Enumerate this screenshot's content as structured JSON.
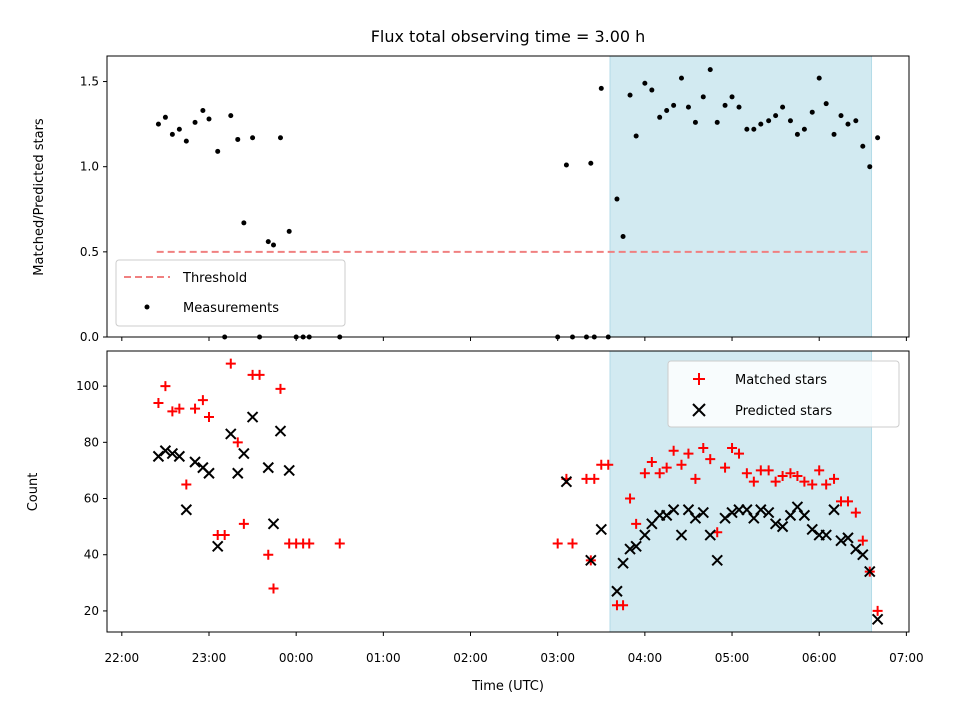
{
  "chart_data": {
    "title": "Flux total observing time = 3.00 h",
    "xlabel": "Time (UTC)",
    "xlim_hours": [
      21.83,
      31.03
    ],
    "x_ticks": [
      {
        "h": 22,
        "label": "22:00"
      },
      {
        "h": 23,
        "label": "23:00"
      },
      {
        "h": 24,
        "label": "00:00"
      },
      {
        "h": 25,
        "label": "01:00"
      },
      {
        "h": 26,
        "label": "02:00"
      },
      {
        "h": 27,
        "label": "03:00"
      },
      {
        "h": 28,
        "label": "04:00"
      },
      {
        "h": 29,
        "label": "05:00"
      },
      {
        "h": 30,
        "label": "06:00"
      },
      {
        "h": 31,
        "label": "07:00"
      }
    ],
    "observing_span_hours": [
      27.6,
      30.6
    ],
    "span_color": "#add8e6",
    "top": {
      "type": "scatter",
      "ylabel": "Matched/Predicted stars",
      "ylim": [
        0,
        1.65
      ],
      "y_ticks": [
        {
          "v": 0,
          "label": "0.0"
        },
        {
          "v": 0.5,
          "label": "0.5"
        },
        {
          "v": 1.0,
          "label": "1.0"
        },
        {
          "v": 1.5,
          "label": "1.5"
        }
      ],
      "threshold": {
        "value": 0.5,
        "x_start": 22.4,
        "x_end": 30.6,
        "color": "#f08080",
        "label": "Threshold"
      },
      "measurements_label": "Measurements",
      "measurements": [
        [
          22.42,
          1.25
        ],
        [
          22.5,
          1.29
        ],
        [
          22.58,
          1.19
        ],
        [
          22.66,
          1.22
        ],
        [
          22.74,
          1.15
        ],
        [
          22.84,
          1.26
        ],
        [
          22.93,
          1.33
        ],
        [
          23.0,
          1.28
        ],
        [
          23.1,
          1.09
        ],
        [
          23.18,
          0
        ],
        [
          23.25,
          1.3
        ],
        [
          23.33,
          1.16
        ],
        [
          23.4,
          0.67
        ],
        [
          23.5,
          1.17
        ],
        [
          23.58,
          0
        ],
        [
          23.68,
          0.56
        ],
        [
          23.74,
          0.54
        ],
        [
          23.82,
          1.17
        ],
        [
          23.92,
          0.62
        ],
        [
          24.0,
          0
        ],
        [
          24.08,
          0
        ],
        [
          24.15,
          0
        ],
        [
          24.5,
          0
        ],
        [
          27.0,
          0
        ],
        [
          27.17,
          0
        ],
        [
          27.33,
          0
        ],
        [
          27.42,
          0
        ],
        [
          27.1,
          1.01
        ],
        [
          27.38,
          1.02
        ],
        [
          27.5,
          1.46
        ],
        [
          27.58,
          0
        ],
        [
          27.68,
          0.81
        ],
        [
          27.75,
          0.59
        ],
        [
          27.83,
          1.42
        ],
        [
          27.9,
          1.18
        ],
        [
          28.0,
          1.49
        ],
        [
          28.08,
          1.45
        ],
        [
          28.17,
          1.29
        ],
        [
          28.25,
          1.33
        ],
        [
          28.33,
          1.36
        ],
        [
          28.42,
          1.52
        ],
        [
          28.5,
          1.35
        ],
        [
          28.58,
          1.26
        ],
        [
          28.67,
          1.41
        ],
        [
          28.75,
          1.57
        ],
        [
          28.83,
          1.26
        ],
        [
          28.92,
          1.36
        ],
        [
          29.0,
          1.41
        ],
        [
          29.08,
          1.35
        ],
        [
          29.17,
          1.22
        ],
        [
          29.25,
          1.22
        ],
        [
          29.33,
          1.25
        ],
        [
          29.42,
          1.27
        ],
        [
          29.5,
          1.3
        ],
        [
          29.58,
          1.35
        ],
        [
          29.67,
          1.27
        ],
        [
          29.75,
          1.19
        ],
        [
          29.83,
          1.22
        ],
        [
          29.92,
          1.32
        ],
        [
          30.0,
          1.52
        ],
        [
          30.08,
          1.37
        ],
        [
          30.17,
          1.19
        ],
        [
          30.25,
          1.3
        ],
        [
          30.33,
          1.25
        ],
        [
          30.42,
          1.27
        ],
        [
          30.5,
          1.12
        ],
        [
          30.58,
          1.0
        ],
        [
          30.67,
          1.17
        ]
      ]
    },
    "bottom": {
      "type": "scatter",
      "ylabel": "Count",
      "ylim": [
        12.5,
        112.5
      ],
      "y_ticks": [
        {
          "v": 20,
          "label": "20"
        },
        {
          "v": 40,
          "label": "40"
        },
        {
          "v": 60,
          "label": "60"
        },
        {
          "v": 80,
          "label": "80"
        },
        {
          "v": 100,
          "label": "100"
        }
      ],
      "series": [
        {
          "name": "Matched stars",
          "marker": "plus",
          "color": "#ff0000",
          "points": [
            [
              22.42,
              94
            ],
            [
              22.5,
              100
            ],
            [
              22.58,
              91
            ],
            [
              22.66,
              92
            ],
            [
              22.74,
              65
            ],
            [
              22.84,
              92
            ],
            [
              22.93,
              95
            ],
            [
              23.0,
              89
            ],
            [
              23.1,
              47
            ],
            [
              23.18,
              47
            ],
            [
              23.25,
              108
            ],
            [
              23.33,
              80
            ],
            [
              23.4,
              51
            ],
            [
              23.5,
              104
            ],
            [
              23.58,
              104
            ],
            [
              23.68,
              40
            ],
            [
              23.74,
              28
            ],
            [
              23.82,
              99
            ],
            [
              23.92,
              44
            ],
            [
              24.0,
              44
            ],
            [
              24.08,
              44
            ],
            [
              24.15,
              44
            ],
            [
              24.5,
              44
            ],
            [
              27.0,
              44
            ],
            [
              27.17,
              44
            ],
            [
              27.1,
              67
            ],
            [
              27.33,
              67
            ],
            [
              27.42,
              67
            ],
            [
              27.38,
              38
            ],
            [
              27.5,
              72
            ],
            [
              27.58,
              72
            ],
            [
              27.68,
              22
            ],
            [
              27.75,
              22
            ],
            [
              27.83,
              60
            ],
            [
              27.9,
              51
            ],
            [
              28.0,
              69
            ],
            [
              28.08,
              73
            ],
            [
              28.17,
              69
            ],
            [
              28.25,
              71
            ],
            [
              28.33,
              77
            ],
            [
              28.42,
              72
            ],
            [
              28.5,
              76
            ],
            [
              28.58,
              67
            ],
            [
              28.67,
              78
            ],
            [
              28.75,
              74
            ],
            [
              28.83,
              48
            ],
            [
              28.92,
              71
            ],
            [
              29.0,
              78
            ],
            [
              29.08,
              76
            ],
            [
              29.17,
              69
            ],
            [
              29.25,
              66
            ],
            [
              29.33,
              70
            ],
            [
              29.42,
              70
            ],
            [
              29.5,
              66
            ],
            [
              29.58,
              68
            ],
            [
              29.67,
              69
            ],
            [
              29.75,
              68
            ],
            [
              29.83,
              66
            ],
            [
              29.92,
              65
            ],
            [
              30.0,
              70
            ],
            [
              30.08,
              65
            ],
            [
              30.17,
              67
            ],
            [
              30.25,
              59
            ],
            [
              30.33,
              59
            ],
            [
              30.42,
              55
            ],
            [
              30.5,
              45
            ],
            [
              30.58,
              34
            ],
            [
              30.67,
              20
            ]
          ]
        },
        {
          "name": "Predicted stars",
          "marker": "x",
          "color": "#000000",
          "points": [
            [
              22.42,
              75
            ],
            [
              22.5,
              77
            ],
            [
              22.58,
              76
            ],
            [
              22.66,
              75
            ],
            [
              22.74,
              56
            ],
            [
              22.84,
              73
            ],
            [
              22.93,
              71
            ],
            [
              23.0,
              69
            ],
            [
              23.1,
              43
            ],
            [
              23.25,
              83
            ],
            [
              23.33,
              69
            ],
            [
              23.4,
              76
            ],
            [
              23.5,
              89
            ],
            [
              23.68,
              71
            ],
            [
              23.74,
              51
            ],
            [
              23.82,
              84
            ],
            [
              23.92,
              70
            ],
            [
              27.1,
              66
            ],
            [
              27.38,
              38
            ],
            [
              27.5,
              49
            ],
            [
              27.68,
              27
            ],
            [
              27.75,
              37
            ],
            [
              27.83,
              42
            ],
            [
              27.9,
              43
            ],
            [
              28.0,
              47
            ],
            [
              28.08,
              51
            ],
            [
              28.17,
              54
            ],
            [
              28.25,
              54
            ],
            [
              28.33,
              56
            ],
            [
              28.42,
              47
            ],
            [
              28.5,
              56
            ],
            [
              28.58,
              53
            ],
            [
              28.67,
              55
            ],
            [
              28.75,
              47
            ],
            [
              28.83,
              38
            ],
            [
              28.92,
              53
            ],
            [
              29.0,
              55
            ],
            [
              29.08,
              56
            ],
            [
              29.17,
              56
            ],
            [
              29.25,
              53
            ],
            [
              29.33,
              56
            ],
            [
              29.42,
              55
            ],
            [
              29.5,
              51
            ],
            [
              29.58,
              50
            ],
            [
              29.67,
              54
            ],
            [
              29.75,
              57
            ],
            [
              29.83,
              54
            ],
            [
              29.92,
              49
            ],
            [
              30.0,
              47
            ],
            [
              30.08,
              47
            ],
            [
              30.17,
              56
            ],
            [
              30.25,
              45
            ],
            [
              30.33,
              46
            ],
            [
              30.42,
              42
            ],
            [
              30.5,
              40
            ],
            [
              30.58,
              34
            ],
            [
              30.67,
              17
            ]
          ]
        }
      ]
    }
  }
}
